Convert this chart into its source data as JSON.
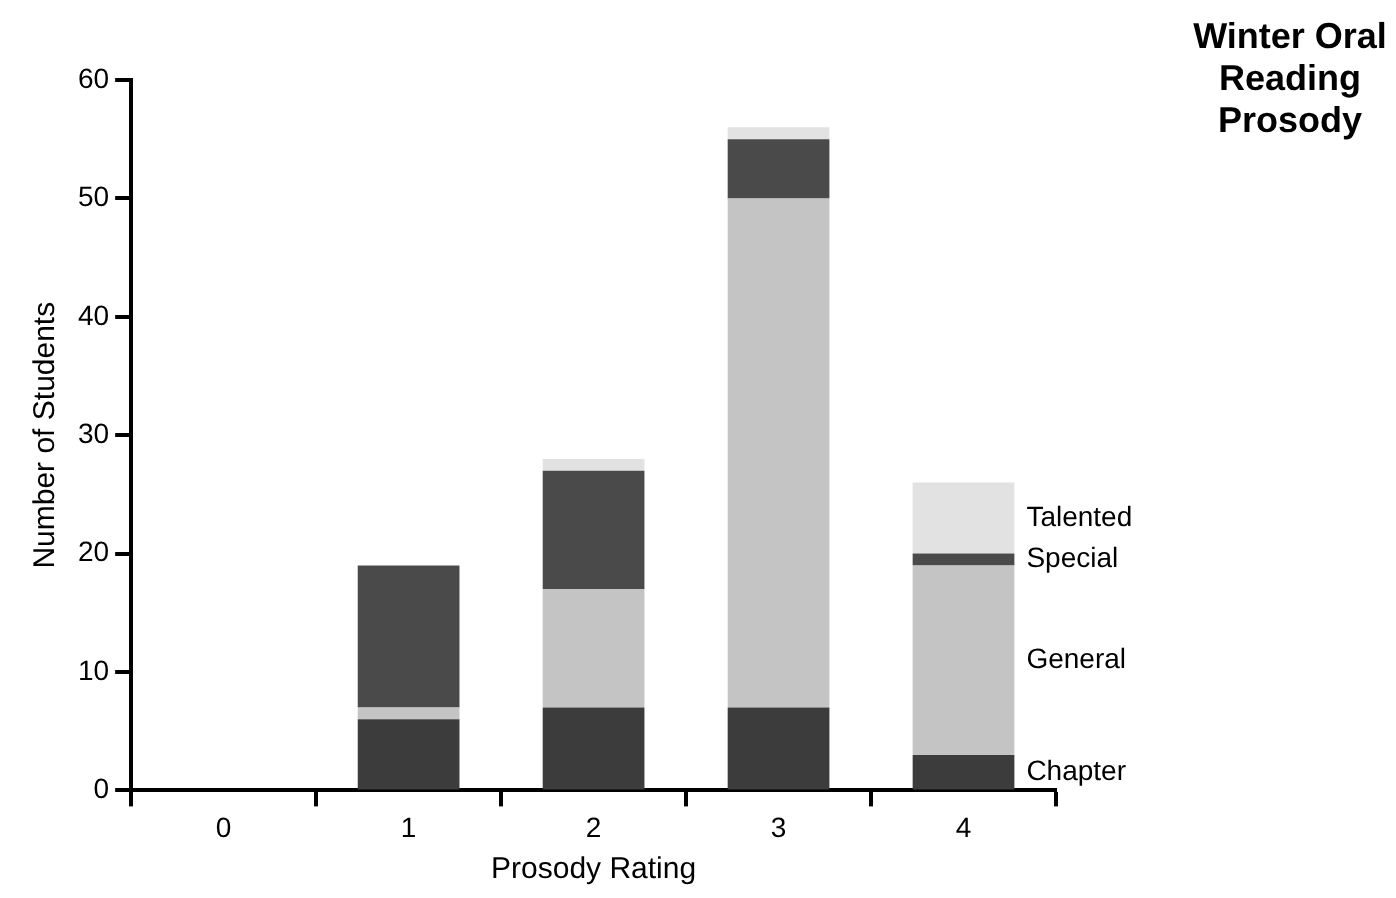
{
  "chart_data": {
    "type": "bar",
    "title": "Winter Oral Reading Prosody",
    "xlabel": "Prosody Rating",
    "ylabel": "Number of Students",
    "categories": [
      "0",
      "1",
      "2",
      "3",
      "4"
    ],
    "stacked": true,
    "legend": "right",
    "ylim": [
      0,
      60
    ],
    "yticks": [
      0,
      10,
      20,
      30,
      40,
      50,
      60
    ],
    "series": [
      {
        "name": "Chapter",
        "color": "#3c3c3c",
        "values": [
          0,
          6,
          7,
          7,
          3
        ]
      },
      {
        "name": "General",
        "color": "#c4c4c4",
        "values": [
          0,
          1,
          10,
          43,
          16
        ]
      },
      {
        "name": "Special",
        "color": "#4a4a4a",
        "values": [
          0,
          12,
          10,
          5,
          1
        ]
      },
      {
        "name": "Talented",
        "color": "#e2e2e2",
        "values": [
          0,
          0,
          1,
          1,
          6
        ]
      }
    ]
  }
}
